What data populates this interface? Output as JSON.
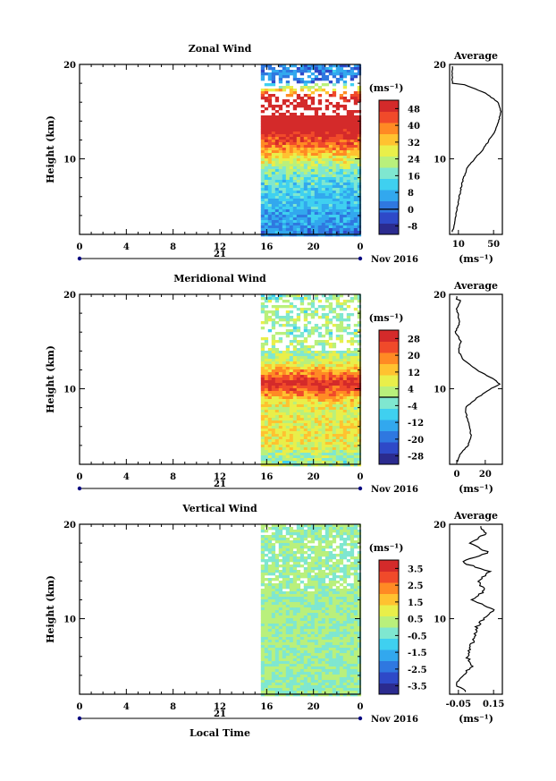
{
  "chart_data": [
    {
      "type": "heatmap",
      "title": "Zonal Wind",
      "ylabel": "Height (km)",
      "xlabel": "",
      "x_ticks": [
        "0",
        "4",
        "8",
        "12",
        "16",
        "20",
        "0"
      ],
      "y_ticks": [
        "20",
        "10"
      ],
      "xlim": [
        0,
        24
      ],
      "ylim": [
        2,
        20
      ],
      "date_center": "21",
      "date_label": "Nov 2016",
      "colorbar": {
        "label": "(ms⁻¹)",
        "ticks": [
          "48",
          "40",
          "32",
          "24",
          "16",
          "8",
          "0",
          "-8"
        ],
        "min": -12,
        "max": 52,
        "zero_line": 0
      },
      "data_start_hour": 15.5,
      "profile": [
        [
          18,
          13
        ],
        [
          17,
          40
        ],
        [
          16,
          55
        ],
        [
          15,
          58
        ],
        [
          14,
          56
        ],
        [
          13,
          52
        ],
        [
          12,
          45
        ],
        [
          11,
          38
        ],
        [
          10,
          28
        ],
        [
          9,
          20
        ],
        [
          8,
          16
        ],
        [
          7,
          13
        ],
        [
          6,
          11
        ],
        [
          5,
          9
        ],
        [
          4,
          7
        ],
        [
          3,
          5
        ],
        [
          2.2,
          3
        ]
      ],
      "colors": [
        "#2b2b8f",
        "#2e49c8",
        "#2f78e0",
        "#32a8ee",
        "#3fd0f0",
        "#7fe7d0",
        "#b9f07c",
        "#e9ef4a",
        "#ffc230",
        "#ff8a24",
        "#f04a2a",
        "#d42a2a"
      ]
    },
    {
      "type": "heatmap",
      "title": "Meridional Wind",
      "ylabel": "Height (km)",
      "xlabel": "",
      "x_ticks": [
        "0",
        "4",
        "8",
        "12",
        "16",
        "20",
        "0"
      ],
      "y_ticks": [
        "20",
        "10"
      ],
      "xlim": [
        0,
        24
      ],
      "ylim": [
        2,
        20
      ],
      "date_center": "21",
      "date_label": "Nov 2016",
      "colorbar": {
        "label": "(ms⁻¹)",
        "ticks": [
          "28",
          "20",
          "12",
          "4",
          "-4",
          "-12",
          "-20",
          "-28"
        ],
        "min": -32,
        "max": 32,
        "zero_line": 0
      },
      "data_start_hour": 15.5,
      "profile": [
        [
          19.5,
          3
        ],
        [
          18.5,
          0
        ],
        [
          17,
          2
        ],
        [
          16,
          -1
        ],
        [
          15,
          3
        ],
        [
          14,
          1
        ],
        [
          13,
          5
        ],
        [
          12,
          14
        ],
        [
          11,
          26
        ],
        [
          10.5,
          30
        ],
        [
          10,
          24
        ],
        [
          9,
          14
        ],
        [
          8,
          6
        ],
        [
          7,
          7
        ],
        [
          6,
          9
        ],
        [
          5,
          10
        ],
        [
          4,
          8
        ],
        [
          3,
          2
        ],
        [
          2.2,
          0
        ]
      ],
      "colors": [
        "#2b2b8f",
        "#2e49c8",
        "#2f78e0",
        "#32a8ee",
        "#3fd0f0",
        "#7fe7d0",
        "#b9f07c",
        "#e9ef4a",
        "#ffc230",
        "#ff8a24",
        "#f04a2a",
        "#d42a2a"
      ]
    },
    {
      "type": "heatmap",
      "title": "Vertical Wind",
      "ylabel": "Height (km)",
      "xlabel": "Local Time",
      "x_ticks": [
        "0",
        "4",
        "8",
        "12",
        "16",
        "20",
        "0"
      ],
      "y_ticks": [
        "20",
        "10"
      ],
      "xlim": [
        0,
        24
      ],
      "ylim": [
        2,
        20
      ],
      "date_center": "21",
      "date_label": "Nov 2016",
      "colorbar": {
        "label": "(ms⁻¹)",
        "ticks": [
          "3.5",
          "2.5",
          "1.5",
          "0.5",
          "-0.5",
          "-1.5",
          "-2.5",
          "-3.5"
        ],
        "min": -4.0,
        "max": 4.0,
        "zero_line": null
      },
      "data_start_hour": 15.5,
      "profile": [
        [
          20,
          0.07
        ],
        [
          19,
          0.1
        ],
        [
          18,
          0.02
        ],
        [
          17,
          0.12
        ],
        [
          16,
          -0.04
        ],
        [
          15,
          0.13
        ],
        [
          14,
          0.06
        ],
        [
          13,
          0.1
        ],
        [
          12,
          0.03
        ],
        [
          11,
          0.15
        ],
        [
          10,
          0.09
        ],
        [
          9,
          0.05
        ],
        [
          8,
          0.04
        ],
        [
          7,
          0.02
        ],
        [
          6,
          0.0
        ],
        [
          5,
          0.03
        ],
        [
          4,
          -0.03
        ],
        [
          3,
          -0.06
        ],
        [
          2.2,
          0.0
        ]
      ],
      "colors": [
        "#2b2b8f",
        "#2e49c8",
        "#2f78e0",
        "#32a8ee",
        "#3fd0f0",
        "#7fe7d0",
        "#b9f07c",
        "#e9ef4a",
        "#ffc230",
        "#ff8a24",
        "#f04a2a",
        "#d42a2a"
      ]
    }
  ],
  "average_panels": [
    {
      "title": "Average",
      "x_ticks": [
        "10",
        "50"
      ],
      "x_values": [
        10,
        50
      ],
      "xlim": [
        0,
        60
      ],
      "y_ticks": [
        "20",
        "10"
      ],
      "unit": "(ms⁻¹)"
    },
    {
      "title": "Average",
      "x_ticks": [
        "0",
        "20"
      ],
      "x_values": [
        0,
        20
      ],
      "xlim": [
        -5,
        32
      ],
      "y_ticks": [
        "20",
        "10"
      ],
      "unit": "(ms⁻¹)"
    },
    {
      "title": "Average",
      "x_ticks": [
        "-0.05",
        "0.15"
      ],
      "x_values": [
        -0.05,
        0.15
      ],
      "xlim": [
        -0.1,
        0.2
      ],
      "y_ticks": [
        "20",
        "10"
      ],
      "unit": "(ms⁻¹)"
    }
  ]
}
